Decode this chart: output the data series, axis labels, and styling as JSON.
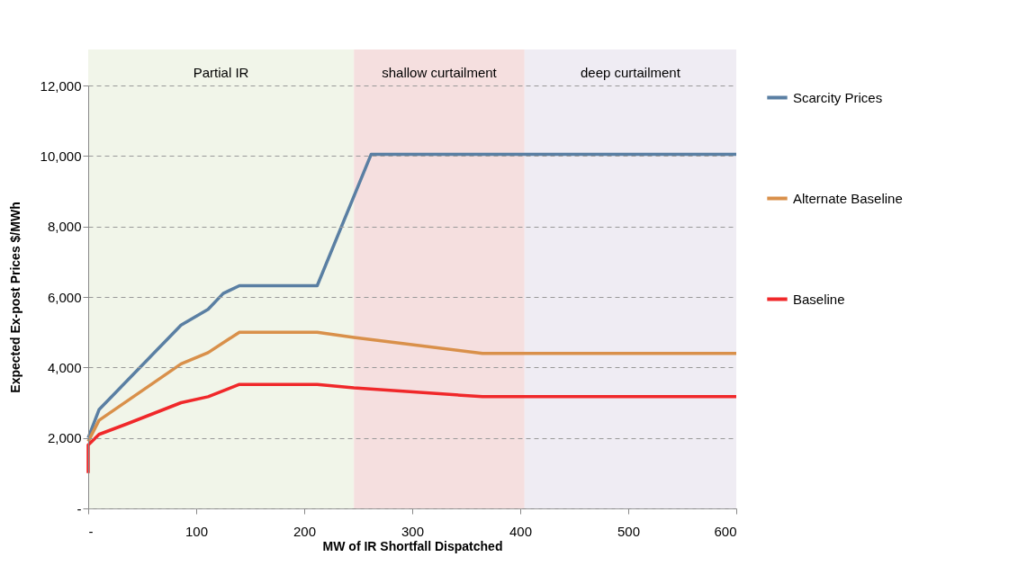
{
  "chart_data": {
    "type": "line",
    "xlabel": "MW of IR Shortfall  Dispatched",
    "ylabel": "Expected Ex-post  Prices $/MWh",
    "xlim": [
      0,
      600
    ],
    "ylim": [
      0,
      12000
    ],
    "xticks": [
      {
        "value": 0,
        "label": "-"
      },
      100,
      200,
      300,
      400,
      500,
      600
    ],
    "yticks": [
      {
        "value": 0,
        "label": "-"
      },
      {
        "value": 2000,
        "label": "2,000"
      },
      {
        "value": 4000,
        "label": "4,000"
      },
      {
        "value": 6000,
        "label": "6,000"
      },
      {
        "value": 8000,
        "label": "8,000"
      },
      {
        "value": 10000,
        "label": "10,000"
      },
      {
        "value": 12000,
        "label": "12,000"
      }
    ],
    "grid": "y",
    "legend": "right",
    "line_style": "solid",
    "marker": "none",
    "series": [
      {
        "name": "Scarcity Prices",
        "color": "#5a7fa3",
        "x": [
          0,
          10,
          86,
          111,
          125,
          140,
          212,
          262,
          600
        ],
        "values": [
          2000,
          2800,
          5200,
          5650,
          6100,
          6320,
          6320,
          10050,
          10050
        ]
      },
      {
        "name": "Alternate Baseline",
        "color": "#d9904a",
        "x": [
          0,
          10,
          86,
          111,
          140,
          212,
          246,
          365,
          600
        ],
        "values": [
          1900,
          2500,
          4100,
          4420,
          5000,
          5000,
          4850,
          4400,
          4400
        ]
      },
      {
        "name": "Baseline",
        "color": "#f0282a",
        "x": [
          0,
          0,
          10,
          36,
          86,
          111,
          140,
          212,
          246,
          365,
          600
        ],
        "values": [
          1000,
          1800,
          2100,
          2400,
          3000,
          3170,
          3520,
          3520,
          3420,
          3170,
          3170
        ]
      }
    ],
    "bands": [
      {
        "axis": "x",
        "from": 0,
        "to": 246,
        "label": "Partial IR",
        "color": "#f1f5e9"
      },
      {
        "axis": "x",
        "from": 246,
        "to": 404,
        "label": "shallow curtailment",
        "color": "#f5dfdf"
      },
      {
        "axis": "x",
        "from": 404,
        "to": 600,
        "label": "deep curtailment",
        "color": "#efecf3"
      }
    ]
  }
}
